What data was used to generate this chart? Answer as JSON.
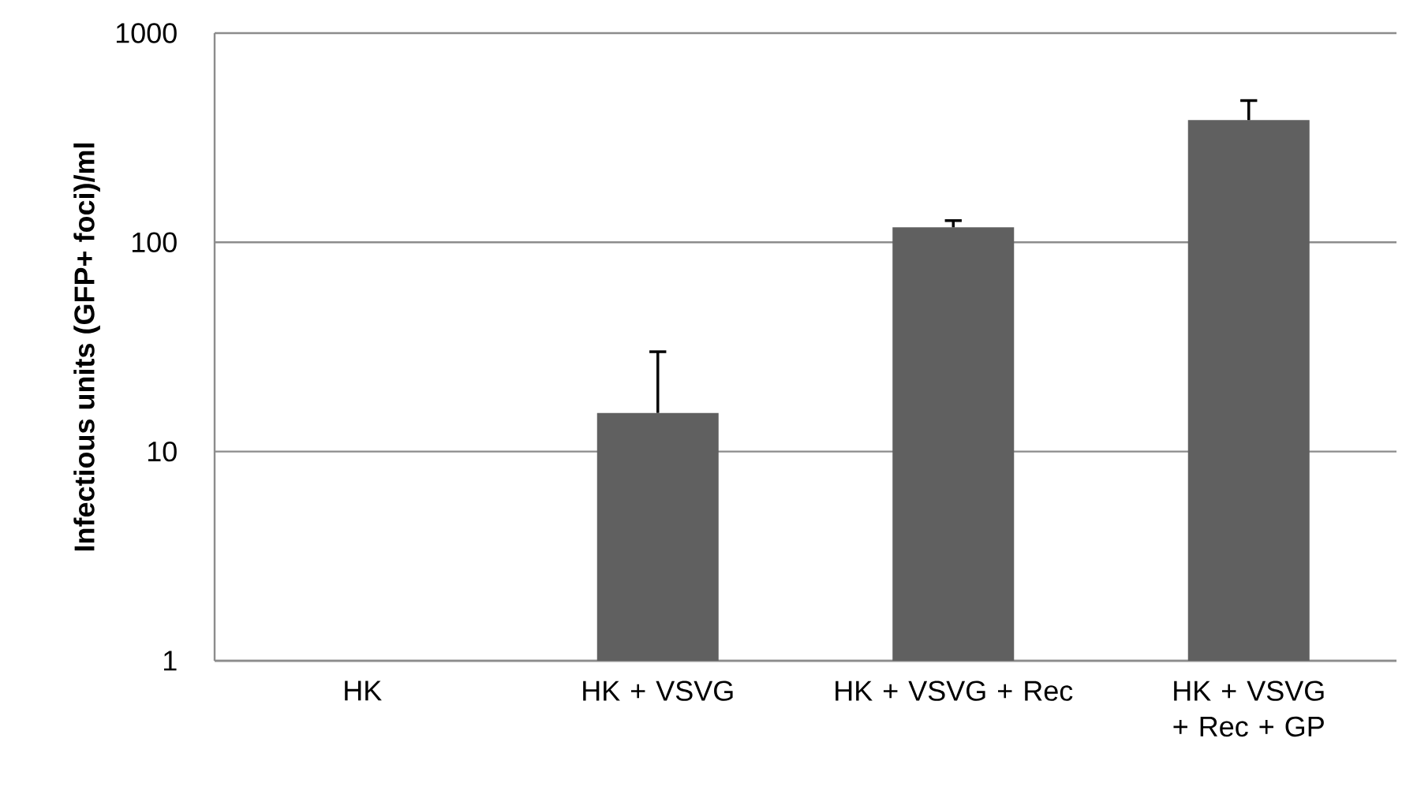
{
  "chart_data": {
    "type": "bar",
    "ylabel": "Infectious units (GFP+ foci)/ml",
    "categories": [
      "HK",
      "HK + VSVG",
      "HK + VSVG + Rec",
      "HK + VSVG + Rec + GP"
    ],
    "values": [
      1,
      15.3,
      118,
      384
    ],
    "errors": [
      null,
      [
        15.3,
        30
      ],
      [
        118,
        127
      ],
      [
        384,
        476
      ]
    ],
    "color": "#606060",
    "log": true,
    "ylim": [
      1,
      1000
    ],
    "yticks": [
      1,
      10,
      100,
      1000
    ],
    "grid": "y"
  }
}
